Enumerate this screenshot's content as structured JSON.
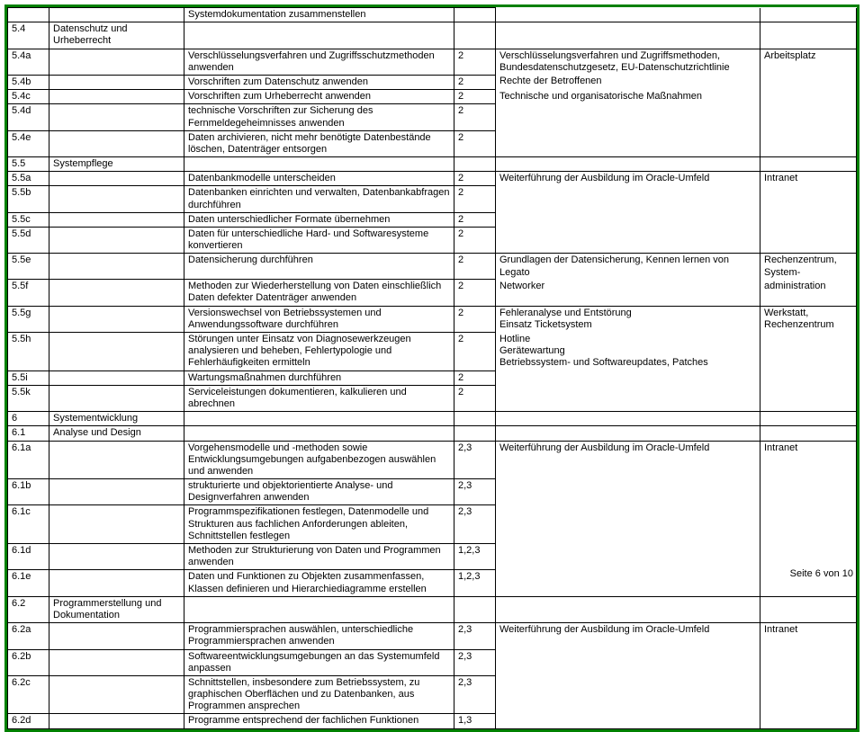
{
  "colors": {
    "outer_border": "#008000",
    "cell_border": "#000000",
    "background": "#ffffff",
    "text": "#000000"
  },
  "page_label": "Seite 6 von 10",
  "rows": [
    {
      "id": "r0",
      "c1": "",
      "c2": "",
      "c3": "Systemdokumentation zusammenstellen",
      "c4": "",
      "c5": "",
      "c6": "",
      "merge5": "bottom",
      "merge6": "bottom"
    },
    {
      "id": "r1",
      "c1": "5.4",
      "c2": "Datenschutz und Urheberrecht",
      "c3": "",
      "c4": "",
      "c5": "",
      "c6": ""
    },
    {
      "id": "r2",
      "c1": "5.4a",
      "c2": "",
      "c3": "Verschlüsselungsverfahren und Zugriffsschutzmethoden anwenden",
      "c4": "2",
      "c5": "Verschlüsselungsverfahren und Zugriffsmethoden, Bundesdatenschutzgesetz, EU-Datenschutzrichtlinie",
      "c6": " Arbeitsplatz",
      "merge5": "top",
      "merge6": "top"
    },
    {
      "id": "r3",
      "c1": "5.4b",
      "c2": "",
      "c3": "Vorschriften zum Datenschutz anwenden",
      "c4": "2",
      "c5": "Rechte der Betroffenen",
      "c6": "",
      "merge5": "mid",
      "merge6": "mid"
    },
    {
      "id": "r4",
      "c1": "5.4c",
      "c2": "",
      "c3": "Vorschriften zum Urheberrecht anwenden",
      "c4": "2",
      "c5": "Technische und organisatorische Maßnahmen",
      "c6": "",
      "merge5": "mid",
      "merge6": "mid"
    },
    {
      "id": "r5",
      "c1": "5.4d",
      "c2": "",
      "c3": "technische Vorschriften zur Sicherung des Fernmeldegeheimnisses anwenden",
      "c4": "2",
      "c5": "",
      "c6": "",
      "merge5": "mid",
      "merge6": "mid"
    },
    {
      "id": "r6",
      "c1": "5.4e",
      "c2": "",
      "c3": "Daten archivieren, nicht mehr benötigte Datenbestände löschen, Datenträger entsorgen",
      "c4": "2",
      "c5": "",
      "c6": "",
      "merge5": "bottom",
      "merge6": "bottom"
    },
    {
      "id": "r7",
      "c1": "5.5",
      "c2": "Systempflege",
      "c3": "",
      "c4": "",
      "c5": "",
      "c6": ""
    },
    {
      "id": "r8",
      "c1": "5.5a",
      "c2": "",
      "c3": "Datenbankmodelle unterscheiden",
      "c4": "2",
      "c5": "Weiterführung der Ausbildung im Oracle-Umfeld",
      "c6": "Intranet",
      "merge5": "top",
      "merge6": "top"
    },
    {
      "id": "r9",
      "c1": "5.5b",
      "c2": "",
      "c3": "Datenbanken einrichten und verwalten, Datenbankabfragen durchführen",
      "c4": "2",
      "c5": "",
      "c6": "",
      "merge5": "mid",
      "merge6": "mid"
    },
    {
      "id": "r10",
      "c1": "5.5c",
      "c2": "",
      "c3": "Daten unterschiedlicher Formate übernehmen",
      "c4": "2",
      "c5": "",
      "c6": "",
      "merge5": "mid",
      "merge6": "mid"
    },
    {
      "id": "r11",
      "c1": "5.5d",
      "c2": "",
      "c3": "Daten für unterschiedliche Hard- und Softwaresysteme konvertieren",
      "c4": "2",
      "c5": "",
      "c6": "",
      "merge5": "bottom",
      "merge6": "bottom"
    },
    {
      "id": "r12",
      "c1": "5.5e",
      "c2": "",
      "c3": "Datensicherung durchführen",
      "c4": "2",
      "c5": "Grundlagen der Datensicherung, Kennen lernen von Legato",
      "c6": "Rechenzentrum, System-",
      "merge5": "top",
      "merge6": "top"
    },
    {
      "id": "r13",
      "c1": "5.5f",
      "c2": "",
      "c3": "Methoden zur Wiederherstellung von Daten einschließlich Daten defekter Datenträger anwenden",
      "c4": "2",
      "c5": "Networker",
      "c6": "administration",
      "merge5": "bottom",
      "merge6": "bottom"
    },
    {
      "id": "r14",
      "c1": "5.5g",
      "c2": "",
      "c3": "Versionswechsel von Betriebssystemen und Anwendungssoftware durchführen",
      "c4": "2",
      "c5": "Fehleranalyse und Entstörung\nEinsatz Ticketsystem",
      "c6": "Werkstatt, Rechenzentrum",
      "merge5": "top",
      "merge6": "top"
    },
    {
      "id": "r15",
      "c1": "5.5h",
      "c2": "",
      "c3": "Störungen unter Einsatz von Diagnosewerkzeugen analysieren und beheben, Fehlertypologie und Fehlerhäufigkeiten ermitteln",
      "c4": "2",
      "c5": "Hotline\nGerätewartung\nBetriebssystem- und Softwareupdates, Patches",
      "c6": "",
      "merge5": "mid",
      "merge6": "mid"
    },
    {
      "id": "r16",
      "c1": "5.5i",
      "c2": "",
      "c3": "Wartungsmaßnahmen durchführen",
      "c4": "2",
      "c5": "",
      "c6": "",
      "merge5": "mid",
      "merge6": "mid"
    },
    {
      "id": "r17",
      "c1": "5.5k",
      "c2": "",
      "c3": "Serviceleistungen dokumentieren, kalkulieren und abrechnen",
      "c4": "2",
      "c5": "",
      "c6": "",
      "merge5": "bottom",
      "merge6": "bottom"
    },
    {
      "id": "r18",
      "c1": "6",
      "c2": "Systementwicklung",
      "c3": "",
      "c4": "",
      "c5": "",
      "c6": ""
    },
    {
      "id": "r19",
      "c1": "6.1",
      "c2": "Analyse und Design",
      "c3": "",
      "c4": "",
      "c5": "",
      "c6": ""
    },
    {
      "id": "r20",
      "c1": "6.1a",
      "c2": "",
      "c3": "Vorgehensmodelle und -methoden sowie Entwicklungsumgebungen aufgabenbezogen auswählen und anwenden",
      "c4": "2,3",
      "c5": "Weiterführung der Ausbildung im Oracle-Umfeld",
      "c6": "Intranet",
      "merge5": "top",
      "merge6": "top"
    },
    {
      "id": "r21",
      "c1": "6.1b",
      "c2": "",
      "c3": "strukturierte und objektorientierte Analyse- und Designverfahren anwenden",
      "c4": "2,3",
      "c5": "",
      "c6": "",
      "merge5": "mid",
      "merge6": "mid"
    },
    {
      "id": "r22",
      "c1": "6.1c",
      "c2": "",
      "c3": "Programmspezifikationen festlegen, Datenmodelle und Strukturen aus fachlichen Anforderungen ableiten, Schnittstellen festlegen",
      "c4": "2,3",
      "c5": "",
      "c6": "",
      "merge5": "mid",
      "merge6": "mid"
    },
    {
      "id": "r23",
      "c1": "6.1d",
      "c2": "",
      "c3": "Methoden zur Strukturierung von Daten und Programmen anwenden",
      "c4": "1,2,3",
      "c5": "",
      "c6": "",
      "merge5": "mid",
      "merge6": "mid"
    },
    {
      "id": "r24",
      "c1": "6.1e",
      "c2": "",
      "c3": "Daten und Funktionen zu Objekten zusammenfassen, Klassen definieren und Hierarchiediagramme erstellen",
      "c4": "1,2,3",
      "c5": "",
      "c6": "",
      "merge5": "bottom",
      "merge6": "bottom"
    },
    {
      "id": "r25",
      "c1": "6.2",
      "c2": "Programmerstellung und Dokumentation",
      "c3": "",
      "c4": "",
      "c5": "",
      "c6": ""
    },
    {
      "id": "r26",
      "c1": "6.2a",
      "c2": "",
      "c3": "Programmiersprachen auswählen, unterschiedliche Programmiersprachen anwenden",
      "c4": "2,3",
      "c5": "Weiterführung der Ausbildung im Oracle-Umfeld",
      "c6": "Intranet",
      "merge5": "top",
      "merge6": "top"
    },
    {
      "id": "r27",
      "c1": "6.2b",
      "c2": "",
      "c3": "Softwareentwicklungsumgebungen an das Systemumfeld anpassen",
      "c4": "2,3",
      "c5": "",
      "c6": "",
      "merge5": "mid",
      "merge6": "mid"
    },
    {
      "id": "r28",
      "c1": "6.2c",
      "c2": "",
      "c3": "Schnittstellen, insbesondere zum Betriebssystem, zu graphischen Oberflächen und zu Datenbanken, aus Programmen ansprechen",
      "c4": "2,3",
      "c5": "",
      "c6": "",
      "merge5": "mid",
      "merge6": "mid"
    },
    {
      "id": "r29",
      "c1": "6.2d",
      "c2": "",
      "c3": "Programme entsprechend der fachlichen Funktionen",
      "c4": "1,3",
      "c5": "",
      "c6": "",
      "merge5": "bottom",
      "merge6": "bottom"
    }
  ]
}
